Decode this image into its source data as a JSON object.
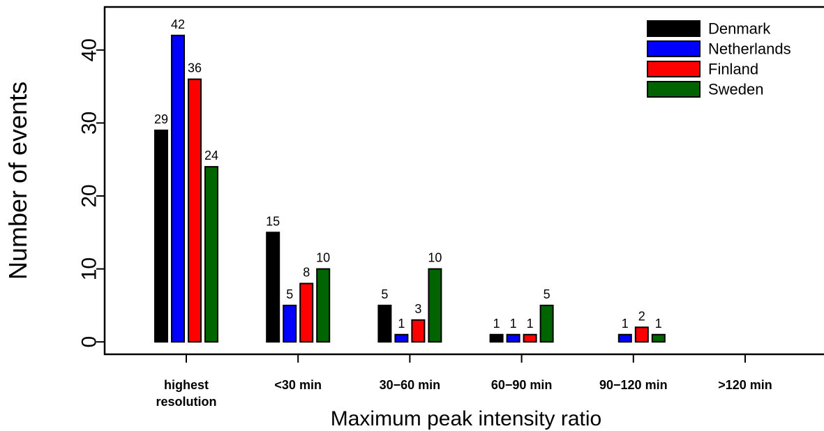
{
  "chart_data": {
    "type": "bar",
    "x_label": "Maximum peak intensity ratio",
    "y_label": "Number of events",
    "categories": [
      "highest resolution",
      "<30 min",
      "30−60 min",
      "60−90 min",
      "90−120 min",
      ">120 min"
    ],
    "series": [
      {
        "name": "Denmark",
        "color": "#000000",
        "values": [
          29,
          15,
          5,
          1,
          null,
          null
        ]
      },
      {
        "name": "Netherlands",
        "color": "#0000ff",
        "values": [
          42,
          5,
          1,
          1,
          1,
          null
        ]
      },
      {
        "name": "Finland",
        "color": "#ff0000",
        "values": [
          36,
          8,
          3,
          1,
          2,
          null
        ]
      },
      {
        "name": "Sweden",
        "color": "#006400",
        "values": [
          24,
          10,
          10,
          5,
          1,
          null
        ]
      }
    ],
    "ylim": [
      -1.7,
      45.9
    ],
    "yticks": [
      0,
      10,
      20,
      30,
      40
    ],
    "legend": "top-right"
  }
}
